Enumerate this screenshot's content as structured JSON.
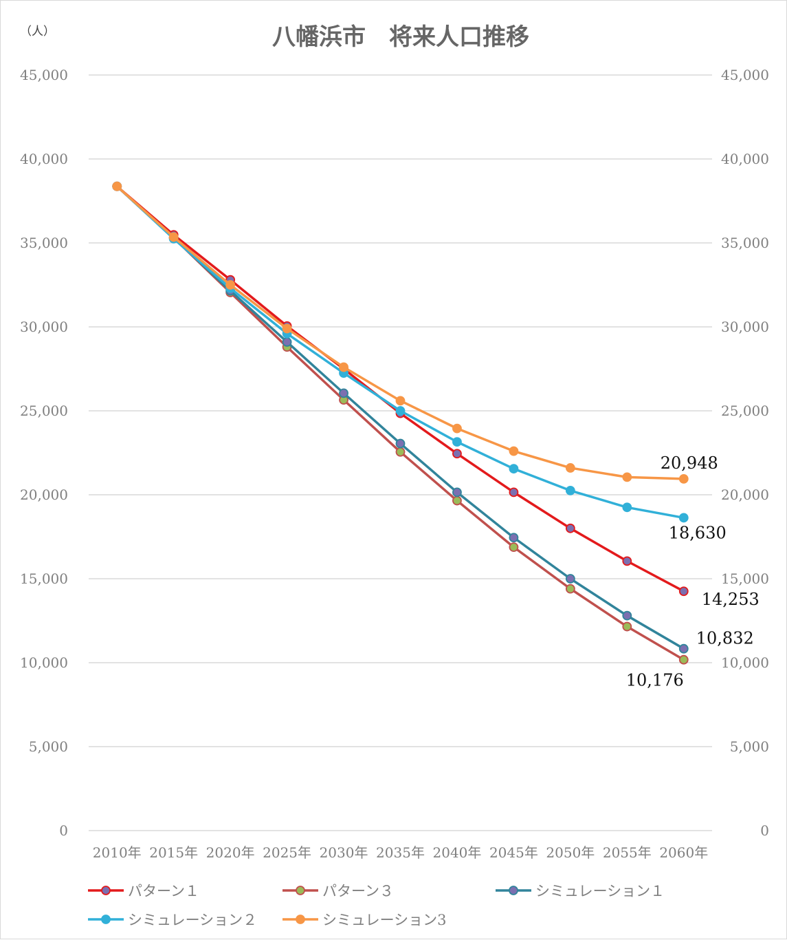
{
  "chart_data": {
    "type": "line",
    "title": "八幡浜市　将来人口推移",
    "unit_label": "（人）",
    "x": [
      "2010年",
      "2015年",
      "2020年",
      "2025年",
      "2030年",
      "2035年",
      "2040年",
      "2045年",
      "2050年",
      "2055年",
      "2060年"
    ],
    "ylim": [
      0,
      45000
    ],
    "yticks": [
      "0",
      "5,000",
      "10,000",
      "15,000",
      "20,000",
      "25,000",
      "30,000",
      "35,000",
      "40,000",
      "45,000"
    ],
    "y2ticks": [
      "0",
      "5,000",
      "10,000",
      "15,000",
      "20,000",
      "25,000",
      "30,000",
      "35,000",
      "40,000",
      "45,000"
    ],
    "grid": true,
    "legend": "bottom",
    "series": [
      {
        "name": "パターン１",
        "line_color": "#e31a1c",
        "marker_color": "#7b6fb0",
        "values": [
          38370,
          35480,
          32800,
          30050,
          27500,
          24850,
          22450,
          20150,
          18000,
          16050,
          14253
        ]
      },
      {
        "name": "パターン３",
        "line_color": "#c0504d",
        "marker_color": "#9bbb59",
        "values": [
          38370,
          35300,
          32050,
          28800,
          25650,
          22550,
          19650,
          16880,
          14400,
          12150,
          10176
        ]
      },
      {
        "name": "シミュレーション１",
        "line_color": "#31849b",
        "marker_color": "#7b6fb0",
        "values": [
          38370,
          35300,
          32150,
          29100,
          26050,
          23050,
          20150,
          17450,
          15000,
          12800,
          10832
        ]
      },
      {
        "name": "シミュレーション２",
        "line_color": "#31b0d8",
        "marker_color": "#31b0d8",
        "values": [
          38370,
          35250,
          32300,
          29600,
          27250,
          25000,
          23150,
          21550,
          20250,
          19250,
          18630
        ]
      },
      {
        "name": "シミュレーション3",
        "line_color": "#f79646",
        "marker_color": "#f79646",
        "values": [
          38370,
          35350,
          32500,
          29900,
          27600,
          25600,
          23950,
          22600,
          21600,
          21050,
          20948
        ]
      }
    ],
    "data_labels": [
      {
        "text": "20,948",
        "series": 4,
        "index": 10
      },
      {
        "text": "18,630",
        "series": 3,
        "index": 10
      },
      {
        "text": "14,253",
        "series": 0,
        "index": 10
      },
      {
        "text": "10,832",
        "series": 2,
        "index": 10
      },
      {
        "text": "10,176",
        "series": 1,
        "index": 10
      }
    ]
  }
}
